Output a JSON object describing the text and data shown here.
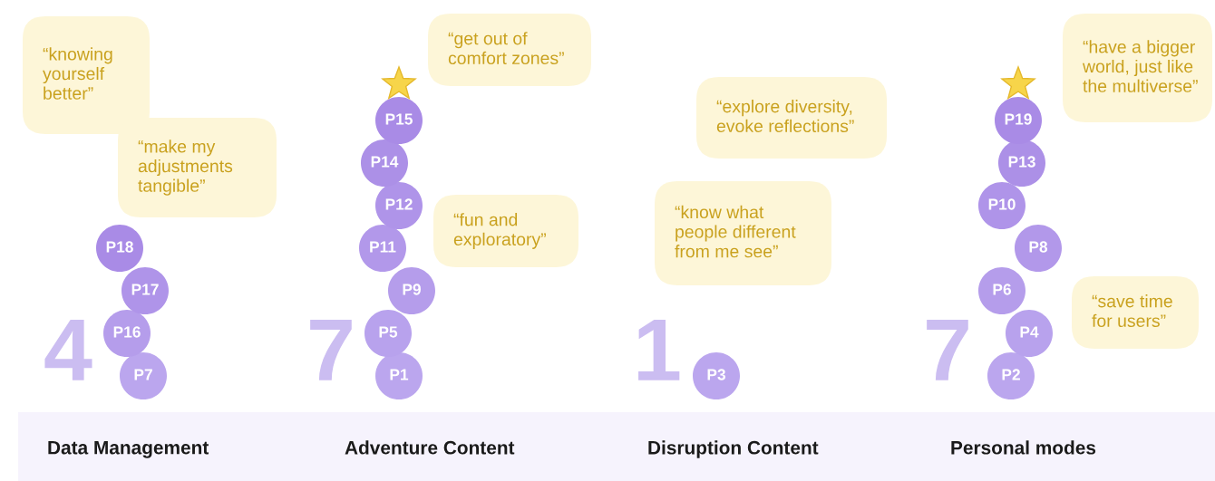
{
  "chart_data": {
    "type": "other",
    "categories": [
      "Data Management",
      "Adventure Content",
      "Disruption Content",
      "Personal modes"
    ],
    "values": [
      4,
      7,
      1,
      7
    ],
    "data_labels": true,
    "color": "#a98be6",
    "annotations": [
      {
        "text": "P7",
        "x": "Data Management"
      },
      {
        "text": "P16",
        "x": "Data Management"
      },
      {
        "text": "P17",
        "x": "Data Management"
      },
      {
        "text": "P18",
        "x": "Data Management"
      },
      {
        "text": "P1",
        "x": "Adventure Content"
      },
      {
        "text": "P5",
        "x": "Adventure Content"
      },
      {
        "text": "P9",
        "x": "Adventure Content"
      },
      {
        "text": "P11",
        "x": "Adventure Content"
      },
      {
        "text": "P12",
        "x": "Adventure Content"
      },
      {
        "text": "P14",
        "x": "Adventure Content"
      },
      {
        "text": "P15",
        "x": "Adventure Content"
      },
      {
        "text": "P3",
        "x": "Disruption Content"
      },
      {
        "text": "P2",
        "x": "Personal modes"
      },
      {
        "text": "P4",
        "x": "Personal modes"
      },
      {
        "text": "P6",
        "x": "Personal modes"
      },
      {
        "text": "P8",
        "x": "Personal modes"
      },
      {
        "text": "P10",
        "x": "Personal modes"
      },
      {
        "text": "P13",
        "x": "Personal modes"
      },
      {
        "text": "P19",
        "x": "Personal modes"
      },
      "“knowing\nyourself\nbetter”",
      "“make my\nadjustments\ntangible”",
      "“get out of\ncomfort zones”",
      "“fun and\nexploratory”",
      "“explore diversity,\nevoke reflections”",
      "“know what\npeople different\nfrom me see”",
      "“have a bigger\nworld, just like\nthe multiverse”",
      "“save time\nfor users”"
    ]
  }
}
